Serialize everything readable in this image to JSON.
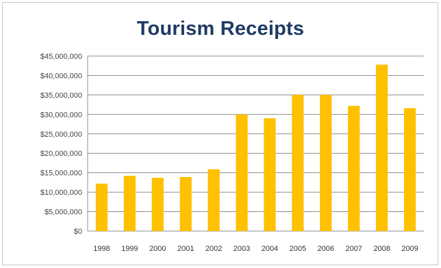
{
  "chart_data": {
    "type": "bar",
    "title": "Tourism Receipts",
    "categories": [
      "1998",
      "1999",
      "2000",
      "2001",
      "2002",
      "2003",
      "2004",
      "2005",
      "2006",
      "2007",
      "2008",
      "2009"
    ],
    "values": [
      12200000,
      14200000,
      13700000,
      13900000,
      15900000,
      30000000,
      29000000,
      35000000,
      35000000,
      32200000,
      42800000,
      31600000
    ],
    "ylim": [
      0,
      45000000
    ],
    "yticks": [
      0,
      5000000,
      10000000,
      15000000,
      20000000,
      25000000,
      30000000,
      35000000,
      40000000,
      45000000
    ],
    "ytick_labels": [
      "$0",
      "$5,000,000",
      "$10,000,000",
      "$15,000,000",
      "$20,000,000",
      "$25,000,000",
      "$30,000,000",
      "$35,000,000",
      "$40,000,000",
      "$45,000,000"
    ],
    "xlabel": "",
    "ylabel": "",
    "grid": true,
    "legend": "none",
    "bar_color": "#FFC000",
    "grid_color": "#8c8c8c",
    "title_color": "#1F3B64"
  }
}
